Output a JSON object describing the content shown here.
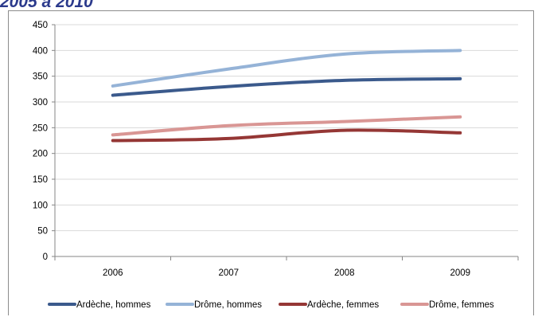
{
  "page": {
    "title": "2005 à 2010"
  },
  "chart_data": {
    "type": "line",
    "title": "",
    "xlabel": "",
    "ylabel": "",
    "categories": [
      "2006",
      "2007",
      "2008",
      "2009"
    ],
    "ylim": [
      0,
      450
    ],
    "yticks": [
      0,
      50,
      100,
      150,
      200,
      250,
      300,
      350,
      400,
      450
    ],
    "grid": true,
    "legend_position": "bottom",
    "series": [
      {
        "name": "Ardèche, hommes",
        "values": [
          313,
          330,
          342,
          345
        ],
        "color": "#3b5a8c"
      },
      {
        "name": "Drôme, hommes",
        "values": [
          331,
          364,
          393,
          400
        ],
        "color": "#95b3d7"
      },
      {
        "name": "Ardèche, femmes",
        "values": [
          225,
          229,
          245,
          240
        ],
        "color": "#953735"
      },
      {
        "name": "Drôme, femmes",
        "values": [
          236,
          254,
          262,
          271
        ],
        "color": "#d99694"
      }
    ]
  }
}
